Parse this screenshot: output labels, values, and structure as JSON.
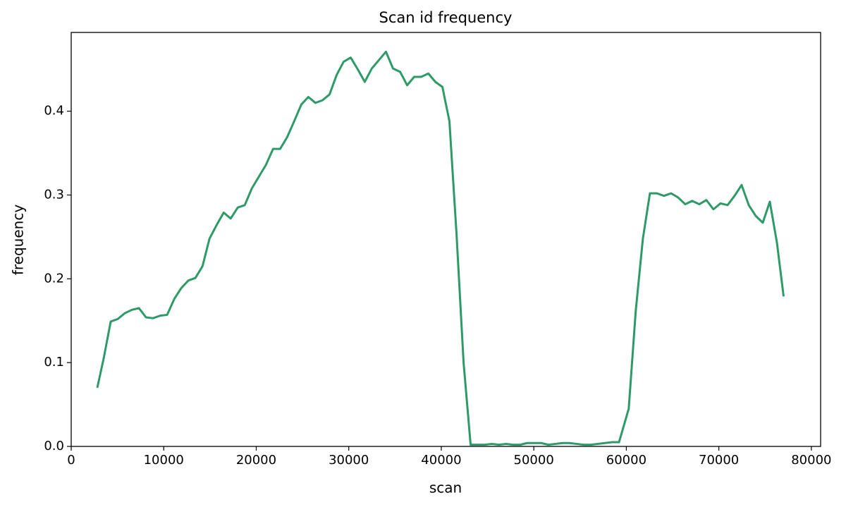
{
  "chart_data": {
    "type": "line",
    "title": "Scan id frequency",
    "x_label": "scan",
    "y_label": "frequency",
    "xlim": [
      0,
      81000
    ],
    "ylim": [
      0,
      0.494
    ],
    "xticks": [
      0,
      10000,
      20000,
      30000,
      40000,
      50000,
      60000,
      70000,
      80000
    ],
    "yticks": [
      {
        "value": 0,
        "label": "0.0"
      },
      0.1,
      0.2,
      0.3,
      0.4
    ],
    "series": [
      {
        "color": "#2e9a68",
        "x": [
          2820,
          3510,
          4270,
          5030,
          5800,
          6560,
          7320,
          8090,
          8850,
          9610,
          10370,
          11140,
          11900,
          12660,
          13420,
          14190,
          14950,
          15710,
          16480,
          17240,
          18000,
          18760,
          19530,
          20290,
          21050,
          21820,
          22580,
          23340,
          24100,
          24870,
          25630,
          26390,
          27150,
          27920,
          28680,
          29440,
          30210,
          30970,
          31730,
          32490,
          33260,
          34020,
          34780,
          35550,
          36310,
          37070,
          37830,
          38600,
          39360,
          40120,
          40880,
          41650,
          42410,
          43170,
          43940,
          44700,
          45470,
          46230,
          46990,
          47760,
          48520,
          49280,
          50050,
          50810,
          51570,
          52340,
          53100,
          53860,
          54630,
          55390,
          56150,
          56920,
          57680,
          58440,
          59210,
          60260,
          61020,
          61790,
          62550,
          63310,
          64070,
          64840,
          65600,
          66360,
          67120,
          67890,
          68650,
          69410,
          70180,
          70940,
          71700,
          72460,
          73230,
          73990,
          74750,
          75510,
          76280,
          77000
        ],
        "values": [
          0.07,
          0.105,
          0.149,
          0.152,
          0.159,
          0.163,
          0.165,
          0.154,
          0.153,
          0.156,
          0.157,
          0.176,
          0.189,
          0.198,
          0.201,
          0.215,
          0.248,
          0.264,
          0.279,
          0.272,
          0.285,
          0.288,
          0.308,
          0.322,
          0.336,
          0.355,
          0.355,
          0.369,
          0.388,
          0.408,
          0.417,
          0.41,
          0.413,
          0.42,
          0.443,
          0.459,
          0.464,
          0.45,
          0.435,
          0.451,
          0.461,
          0.471,
          0.451,
          0.447,
          0.431,
          0.441,
          0.441,
          0.445,
          0.435,
          0.429,
          0.388,
          0.253,
          0.1,
          0.002,
          0.002,
          0.002,
          0.003,
          0.002,
          0.003,
          0.002,
          0.002,
          0.004,
          0.004,
          0.004,
          0.002,
          0.003,
          0.004,
          0.004,
          0.003,
          0.002,
          0.002,
          0.003,
          0.004,
          0.005,
          0.005,
          0.045,
          0.162,
          0.248,
          0.302,
          0.302,
          0.299,
          0.302,
          0.297,
          0.289,
          0.293,
          0.289,
          0.294,
          0.283,
          0.29,
          0.288,
          0.299,
          0.312,
          0.288,
          0.275,
          0.267,
          0.292,
          0.243,
          0.179
        ]
      }
    ]
  }
}
